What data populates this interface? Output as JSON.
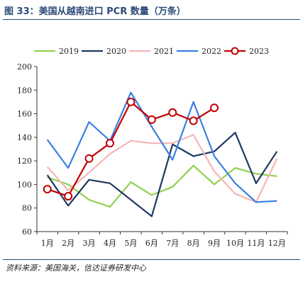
{
  "figure": {
    "title": "图 33：美国从越南进口 PCR 数量（万条）",
    "source": "资料来源：美国海关，信达证券研发中心"
  },
  "chart_data": {
    "type": "line",
    "title": "图 33：美国从越南进口 PCR 数量（万条）",
    "categories": [
      "1月",
      "2月",
      "3月",
      "4月",
      "5月",
      "6月",
      "7月",
      "8月",
      "9月",
      "10月",
      "11月",
      "12月"
    ],
    "ylim": [
      60,
      200
    ],
    "yticks": [
      60,
      80,
      100,
      120,
      140,
      160,
      180,
      200
    ],
    "grid": false,
    "legend": "top",
    "series": [
      {
        "name": "2019",
        "color": "#92d050",
        "marker": "none",
        "values": [
          106,
          100,
          87,
          81,
          102,
          91,
          98,
          116,
          100,
          114,
          109,
          107
        ]
      },
      {
        "name": "2020",
        "color": "#1f3864",
        "marker": "none",
        "values": [
          108,
          82,
          104,
          101,
          87,
          73,
          134,
          124,
          128,
          144,
          101,
          128
        ]
      },
      {
        "name": "2021",
        "color": "#f4b6b6",
        "marker": "none",
        "values": [
          115,
          95,
          110,
          126,
          137,
          135,
          135,
          142,
          111,
          92,
          85,
          122
        ]
      },
      {
        "name": "2022",
        "color": "#3a7fe0",
        "marker": "none",
        "values": [
          138,
          114,
          153,
          137,
          178,
          149,
          121,
          170,
          124,
          101,
          85,
          86
        ]
      },
      {
        "name": "2023",
        "color": "#c00000",
        "marker": "circle",
        "values": [
          96,
          90,
          122,
          135,
          170,
          155,
          161,
          154,
          165,
          null,
          null,
          null
        ]
      }
    ]
  }
}
